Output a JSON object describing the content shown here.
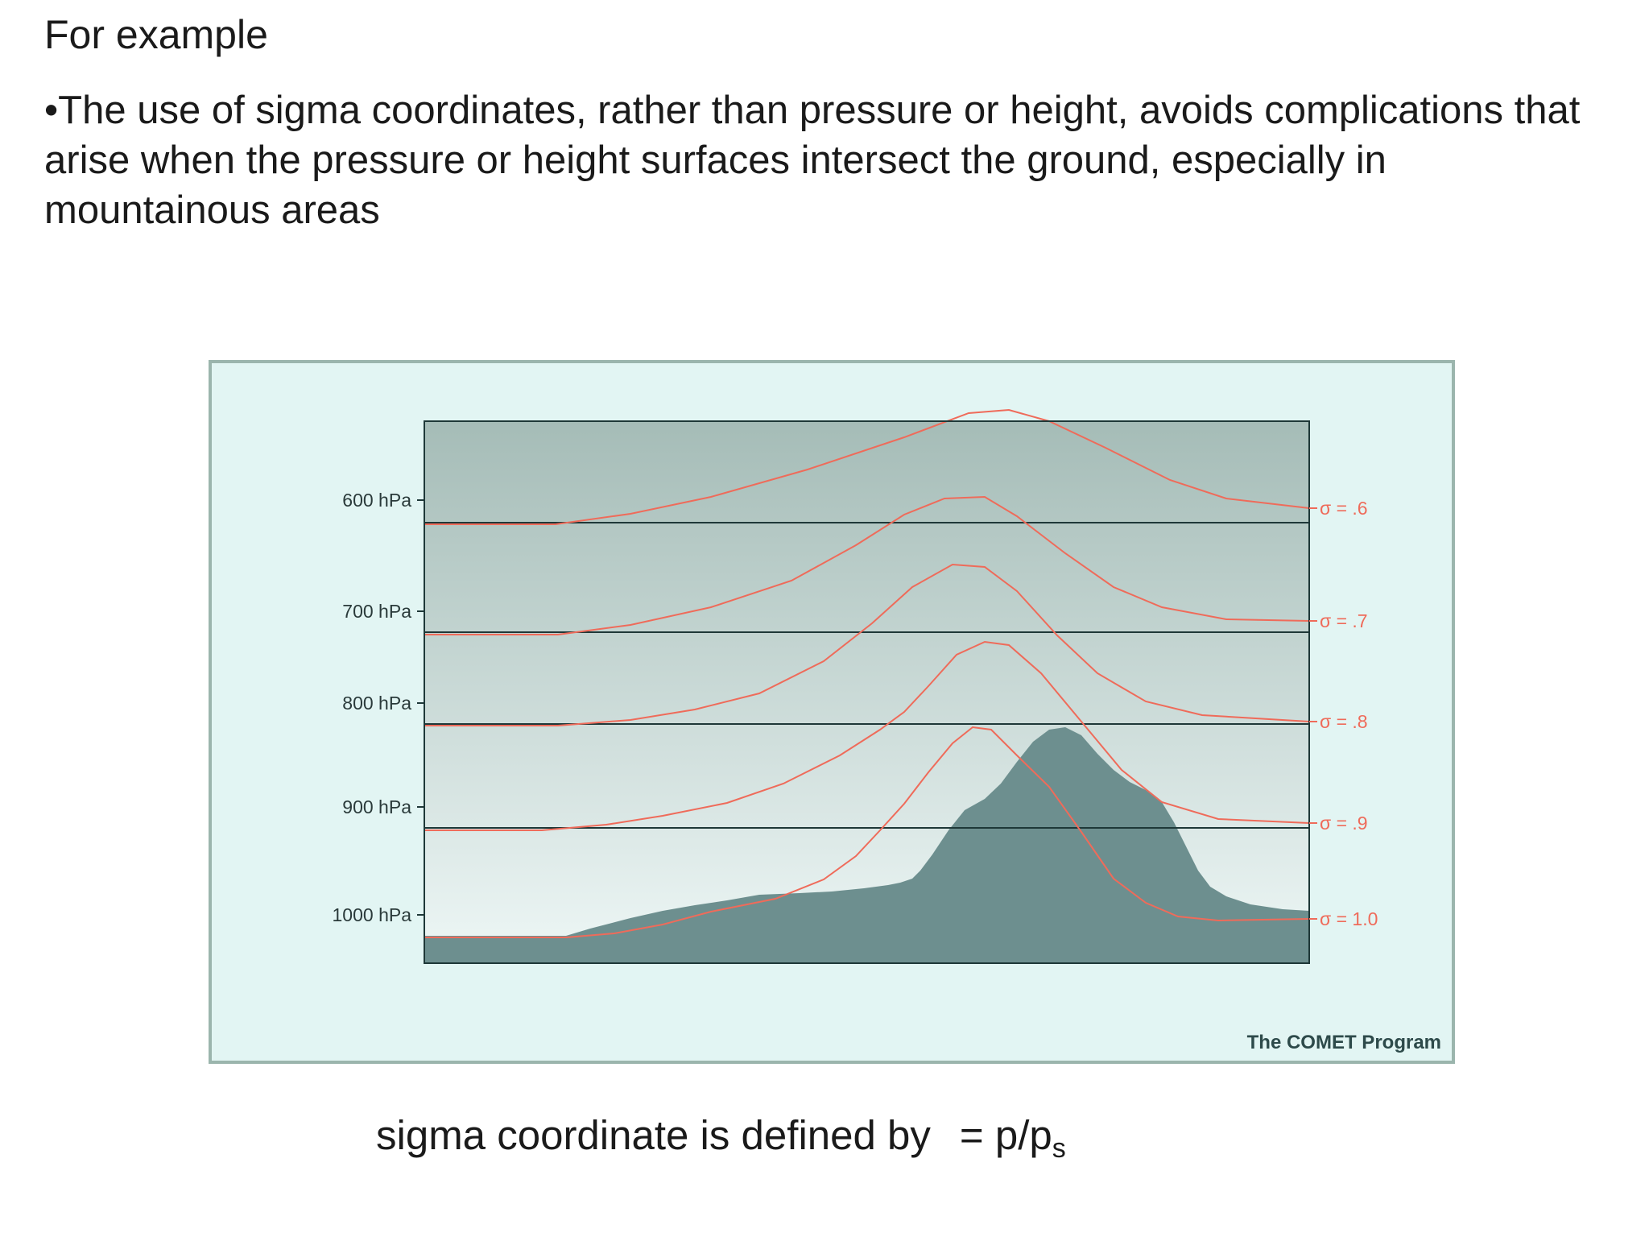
{
  "heading": "For example",
  "bullet": "•The use of sigma coordinates, rather than pressure or height, avoids complications that arise when the pressure or height surfaces intersect the ground, especially in mountainous areas",
  "figure": {
    "credit": "The COMET Program",
    "pressure_levels": [
      {
        "label": "600 hPa",
        "value": 600
      },
      {
        "label": "700 hPa",
        "value": 700
      },
      {
        "label": "800 hPa",
        "value": 800
      },
      {
        "label": "900 hPa",
        "value": 900
      },
      {
        "label": "1000 hPa",
        "value": 1000
      }
    ],
    "sigma_levels": [
      {
        "label": "σ = .6",
        "value": 0.6
      },
      {
        "label": "σ = .7",
        "value": 0.7
      },
      {
        "label": "σ = .8",
        "value": 0.8
      },
      {
        "label": "σ = .9",
        "value": 0.9
      },
      {
        "label": "σ = 1.0",
        "value": 1.0
      }
    ],
    "colors": {
      "sky_top": "#a5bcb7",
      "sky_bottom": "#eef7f6",
      "mountain": "#6d8f8f",
      "sigma_line": "#ef6b5a",
      "pressure_line": "#1e3838",
      "frame": "#9bb5ad",
      "panel": "#e2f5f3"
    }
  },
  "caption": {
    "text": "sigma coordinate is defined by",
    "formula_main": "= p/p",
    "formula_sub": "s"
  }
}
